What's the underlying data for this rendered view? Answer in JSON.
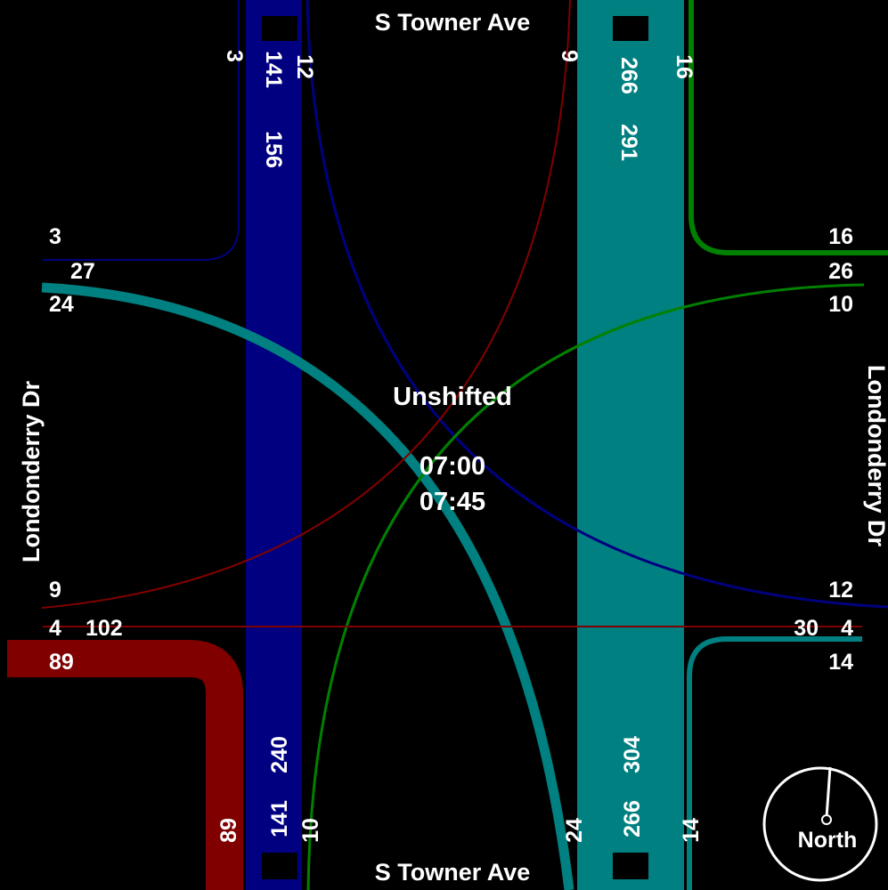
{
  "streets": {
    "north": "S Towner Ave",
    "south": "S Towner Ave",
    "west": "Londonderry Dr",
    "east": "Londonderry Dr"
  },
  "center": {
    "title": "Unshifted",
    "time_start": "07:00",
    "time_end": "07:45"
  },
  "compass": {
    "label": "North"
  },
  "north_leg": {
    "in_right": "3",
    "in_through": "141",
    "in_left": "12",
    "out_left": "9",
    "out_through": "266",
    "out_right": "16",
    "in_total": "156",
    "out_total": "291"
  },
  "south_leg": {
    "in_right": "14",
    "in_through": "266",
    "in_left": "24",
    "out_right": "89",
    "out_through": "141",
    "out_left": "10",
    "in_total": "304",
    "out_total": "240"
  },
  "west_leg": {
    "top": "3",
    "second": "27",
    "third": "24",
    "fourth": "9",
    "fifth_a": "4",
    "fifth_b": "102",
    "sixth": "89"
  },
  "east_leg": {
    "top": "16",
    "second": "26",
    "third": "10",
    "fourth": "12",
    "fifth_a": "30",
    "fifth_b": "4",
    "sixth": "14"
  },
  "colors": {
    "blue": "#000080",
    "teal": "#008080",
    "maroon": "#800000",
    "green": "#008000",
    "background": "#000000",
    "text": "#ffffff"
  }
}
